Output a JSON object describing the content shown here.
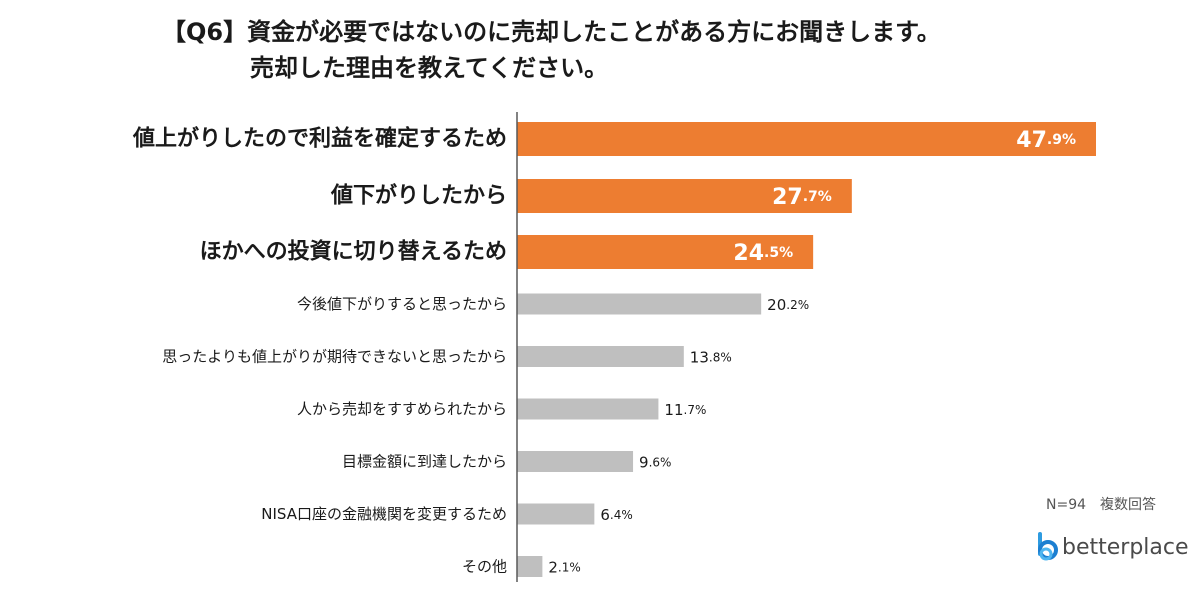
{
  "title": {
    "line1": "【Q6】資金が必要ではないのに売却したことがある方にお聞きします。",
    "line2": "売却した理由を教えてください。"
  },
  "footnote": "N=94　複数回答",
  "logo": {
    "text": "betterplace",
    "icon": "betterplace-logo-icon"
  },
  "colors": {
    "highlight": "#ED7D31",
    "normal": "#BFBFBF",
    "axis": "#595959"
  },
  "chart_data": {
    "type": "bar",
    "orientation": "horizontal",
    "unit": "%",
    "xlim": [
      0,
      50
    ],
    "grid": false,
    "highlight_count": 3,
    "categories": [
      "値上がりしたので利益を確定するため",
      "値下がりしたから",
      "ほかへの投資に切り替えるため",
      "今後値下がりすると思ったから",
      "思ったよりも値上がりが期待できないと思ったから",
      "人から売却をすすめられたから",
      "目標金額に到達したから",
      "NISA口座の金融機関を変更するため",
      "その他"
    ],
    "values": [
      47.9,
      27.7,
      24.5,
      20.2,
      13.8,
      11.7,
      9.6,
      6.4,
      2.1
    ]
  }
}
